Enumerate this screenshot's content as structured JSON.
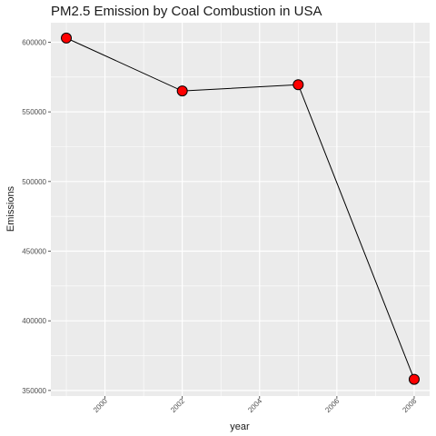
{
  "chart_data": {
    "type": "line",
    "title": "PM2.5 Emission by Coal Combustion in USA",
    "xlabel": "year",
    "ylabel": "Emissions",
    "x": [
      1999,
      2002,
      2005,
      2008
    ],
    "series": [
      {
        "values": [
          603000,
          565000,
          569500,
          358000
        ]
      }
    ],
    "xlim": [
      1998.6,
      2008.4
    ],
    "ylim": [
      346000,
      614000
    ],
    "x_ticks": [
      2000,
      2002,
      2004,
      2006,
      2008
    ],
    "y_ticks": [
      350000,
      400000,
      450000,
      500000,
      550000,
      600000
    ],
    "x_tick_labels": [
      "2000",
      "2002",
      "2004",
      "2006",
      "2008"
    ],
    "y_tick_labels": [
      "350000",
      "400000",
      "450000",
      "500000",
      "550000",
      "600000"
    ],
    "grid": true,
    "legend": "none",
    "colors": {
      "panel": "#ebebeb",
      "grid": "#ffffff",
      "line": "#000000",
      "point_fill": "#ff0000",
      "point_stroke": "#000000"
    }
  }
}
